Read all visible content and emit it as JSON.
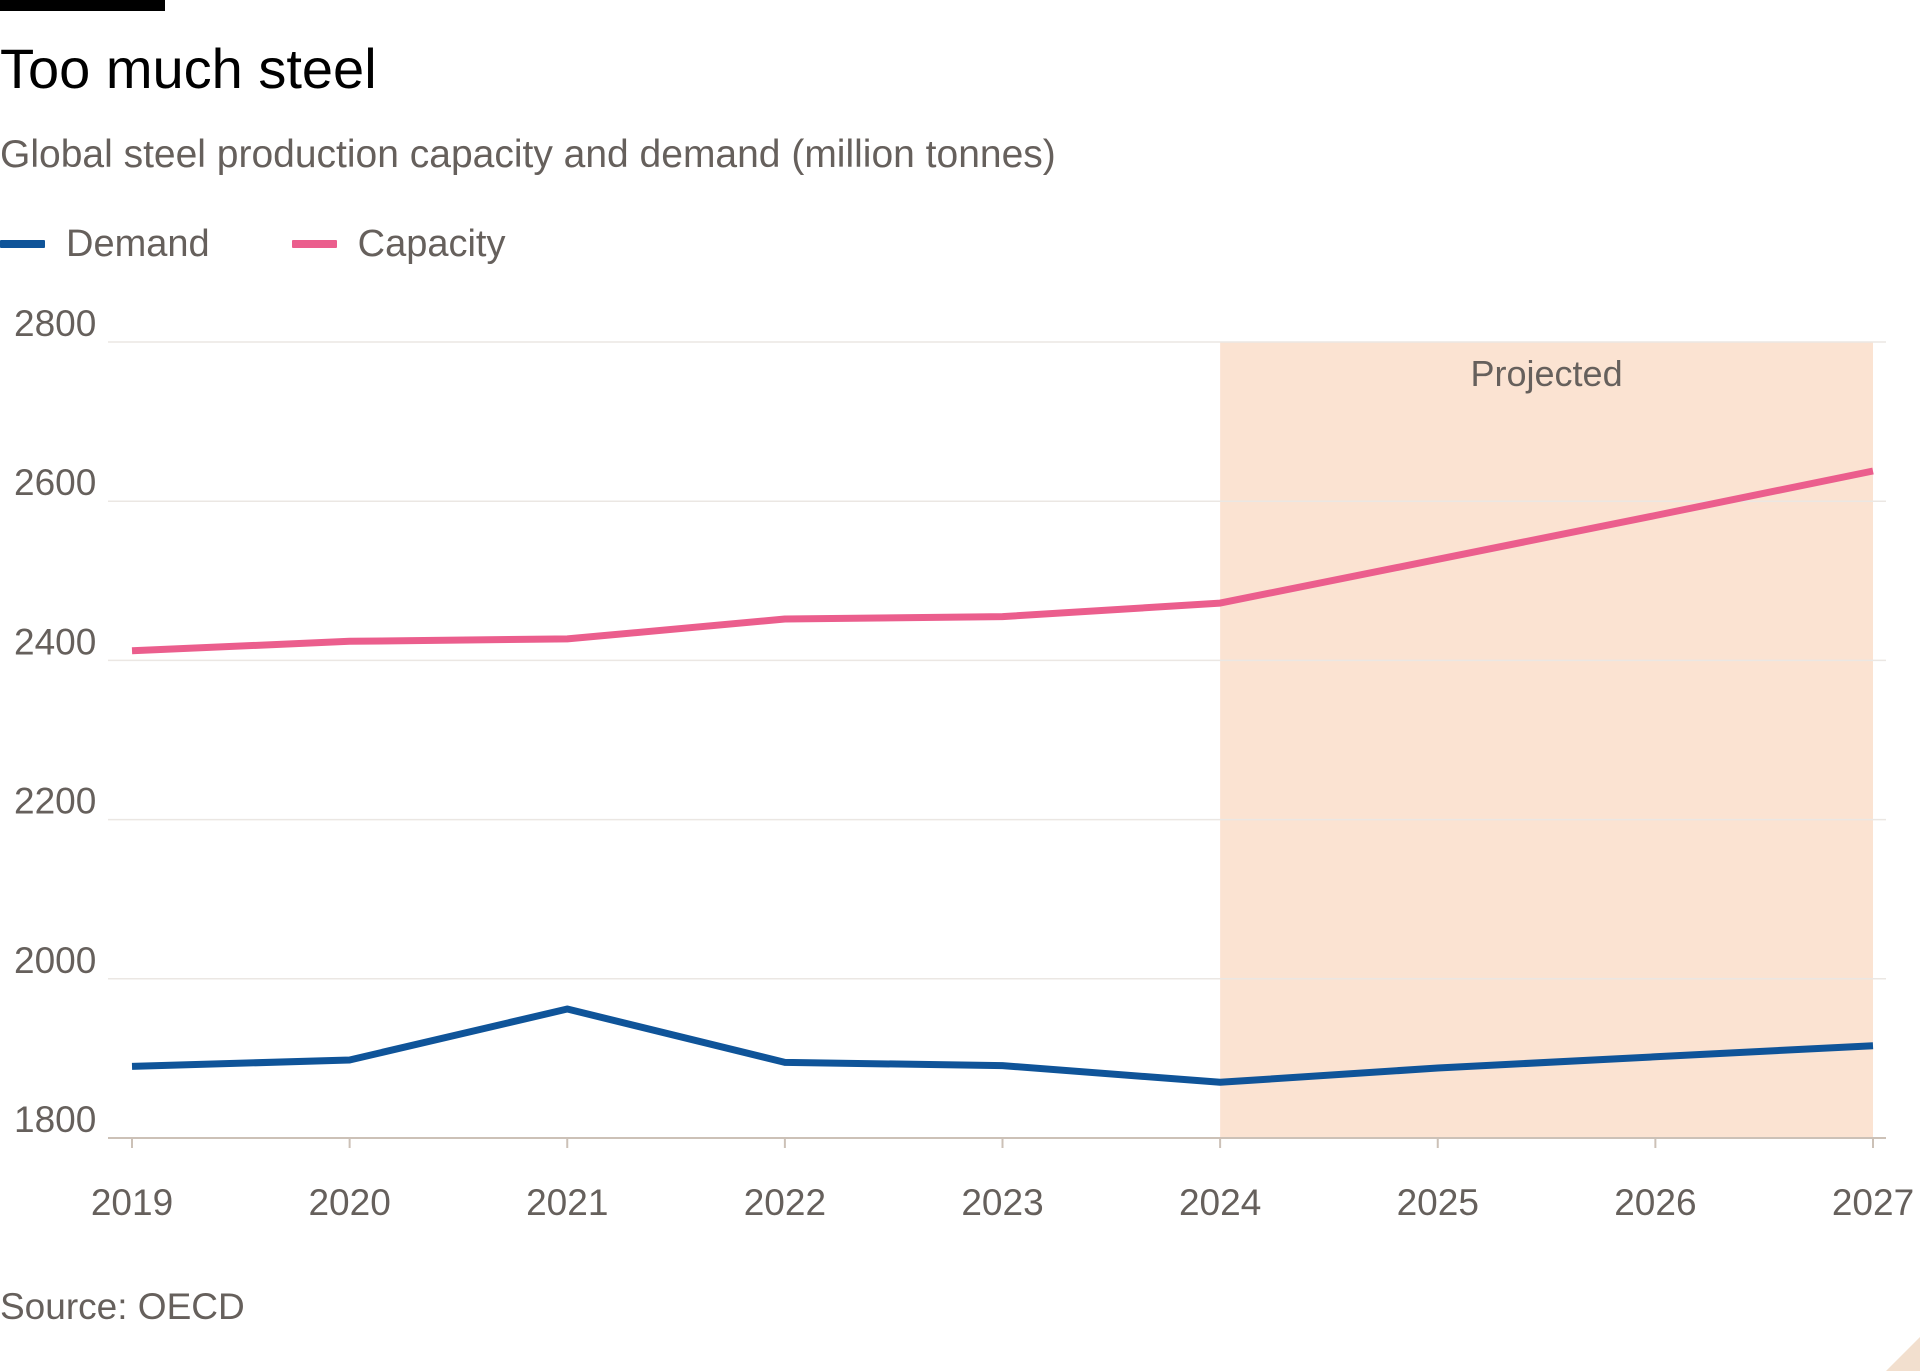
{
  "title": "Too much steel",
  "subtitle": "Global steel production capacity and demand (million tonnes)",
  "source": "Source: OECD",
  "chart_data": {
    "type": "line",
    "x": [
      2019,
      2020,
      2021,
      2022,
      2023,
      2024,
      2025,
      2026,
      2027
    ],
    "series": [
      {
        "name": "Demand",
        "color": "#0f5499",
        "values": [
          1890,
          1898,
          1962,
          1895,
          1891,
          1870,
          1888,
          1902,
          1916
        ]
      },
      {
        "name": "Capacity",
        "color": "#eb5e8d",
        "values": [
          2412,
          2424,
          2427,
          2452,
          2455,
          2472,
          2527,
          2582,
          2638
        ]
      }
    ],
    "ylim": [
      1800,
      2800
    ],
    "yticks": [
      1800,
      2000,
      2200,
      2400,
      2600,
      2800
    ],
    "xticks": [
      2019,
      2020,
      2021,
      2022,
      2023,
      2024,
      2025,
      2026,
      2027
    ],
    "grid": true,
    "legend_position": "top-left",
    "annotation": {
      "label": "Projected",
      "x_start": 2024,
      "x_end": 2027,
      "color": "#fbe3d2"
    }
  }
}
